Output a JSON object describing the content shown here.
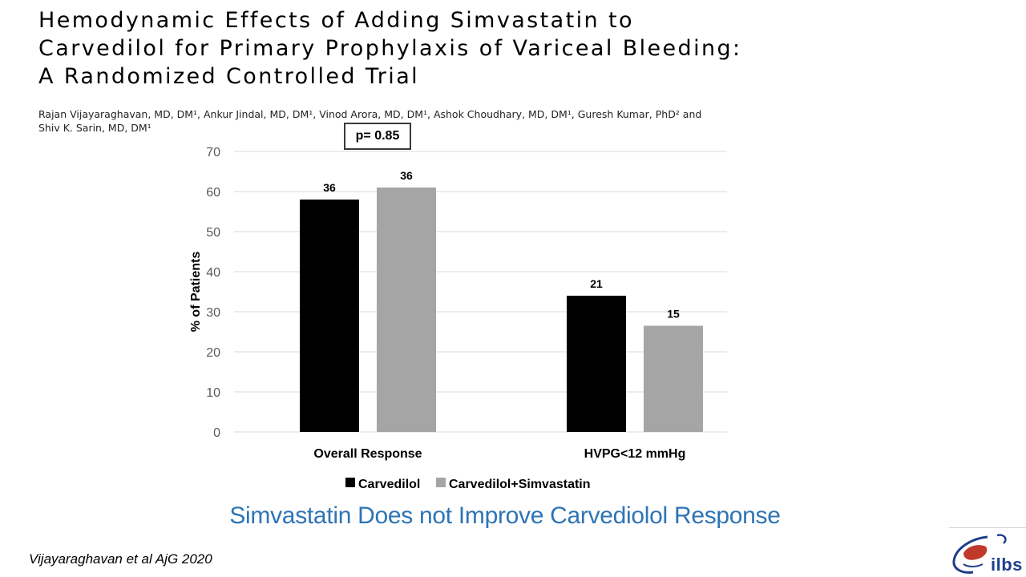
{
  "slide": {
    "title_lines": [
      "Hemodynamic Effects of Adding Simvastatin to",
      "Carvedilol for Primary Prophylaxis of Variceal Bleeding:",
      "A Randomized Controlled Trial"
    ],
    "authors_lines": [
      "Rajan Vijayaraghavan, MD, DM¹, Ankur Jindal, MD, DM¹, Vinod Arora, MD, DM¹, Ashok Choudhary, MD, DM¹, Guresh Kumar, PhD² and",
      "Shiv K. Sarin, MD, DM¹"
    ],
    "p_value": "p= 0.85",
    "conclusion": "Simvastatin Does not Improve Carvediolol Response",
    "citation": "Vijayaraghavan et al AjG 2020",
    "logo_text": "ilbs",
    "colors": {
      "carvedilol": "#000000",
      "combination": "#a5a5a5",
      "conclusion": "#2e74b5",
      "logo": "#1f3f8a",
      "logo_accent": "#c0392b"
    }
  },
  "chart_data": {
    "type": "bar",
    "categories": [
      "Overall Response",
      "HVPG<12 mmHg"
    ],
    "series": [
      {
        "name": "Carvedilol",
        "values": [
          58,
          34
        ],
        "labels": [
          "36",
          "21"
        ],
        "color": "#000000"
      },
      {
        "name": "Carvedilol+Simvastatin",
        "values": [
          61,
          26.5
        ],
        "labels": [
          "36",
          "15"
        ],
        "color": "#a5a5a5"
      }
    ],
    "ylabel": "% of Patients",
    "xlabel": "",
    "ylim": [
      0,
      70
    ],
    "yticks": [
      0,
      10,
      20,
      30,
      40,
      50,
      60,
      70
    ],
    "grid": true,
    "legend": "bottom"
  }
}
